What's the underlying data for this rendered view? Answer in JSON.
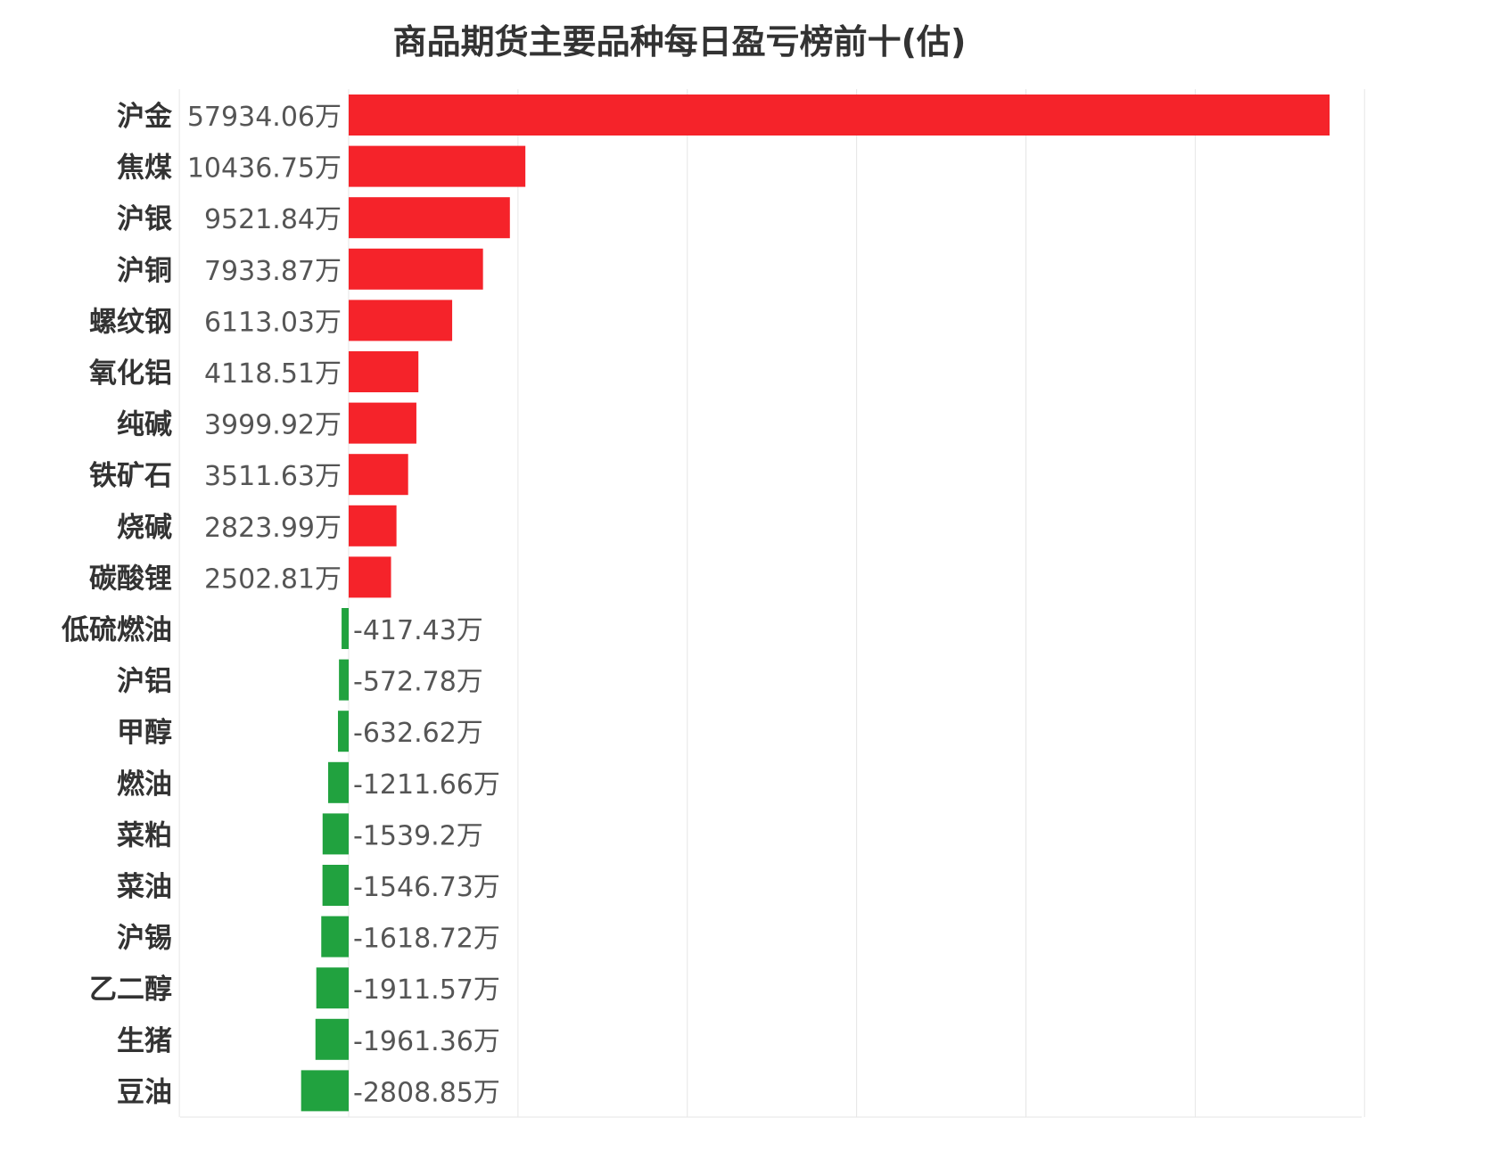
{
  "chart_data": {
    "type": "bar",
    "orientation": "horizontal",
    "title": "商品期货主要品种每日盈亏榜前十(估)",
    "xlabel": "",
    "ylabel": "",
    "unit": "万",
    "grid": true,
    "legend": "none",
    "colors": {
      "positive": "#f5232a",
      "negative": "#21a23f",
      "grid": "#e6e6e6",
      "text": "#333333",
      "value_text": "#555555"
    },
    "xlim": [
      -10000,
      60000
    ],
    "categories": [
      "沪金",
      "焦煤",
      "沪银",
      "沪铜",
      "螺纹钢",
      "氧化铝",
      "纯碱",
      "铁矿石",
      "烧碱",
      "碳酸锂",
      "低硫燃油",
      "沪铝",
      "甲醇",
      "燃油",
      "菜粕",
      "菜油",
      "沪锡",
      "乙二醇",
      "生猪",
      "豆油"
    ],
    "values": [
      57934.06,
      10436.75,
      9521.84,
      7933.87,
      6113.03,
      4118.51,
      3999.92,
      3511.63,
      2823.99,
      2502.81,
      -417.43,
      -572.78,
      -632.62,
      -1211.66,
      -1539.2,
      -1546.73,
      -1618.72,
      -1911.57,
      -1961.36,
      -2808.85
    ],
    "labels": [
      "57934.06万",
      "10436.75万",
      "9521.84万",
      "7933.87万",
      "6113.03万",
      "4118.51万",
      "3999.92万",
      "3511.63万",
      "2823.99万",
      "2502.81万",
      "-417.43万",
      "-572.78万",
      "-632.62万",
      "-1211.66万",
      "-1539.2万",
      "-1546.73万",
      "-1618.72万",
      "-1911.57万",
      "-1961.36万",
      "-2808.85万"
    ]
  }
}
